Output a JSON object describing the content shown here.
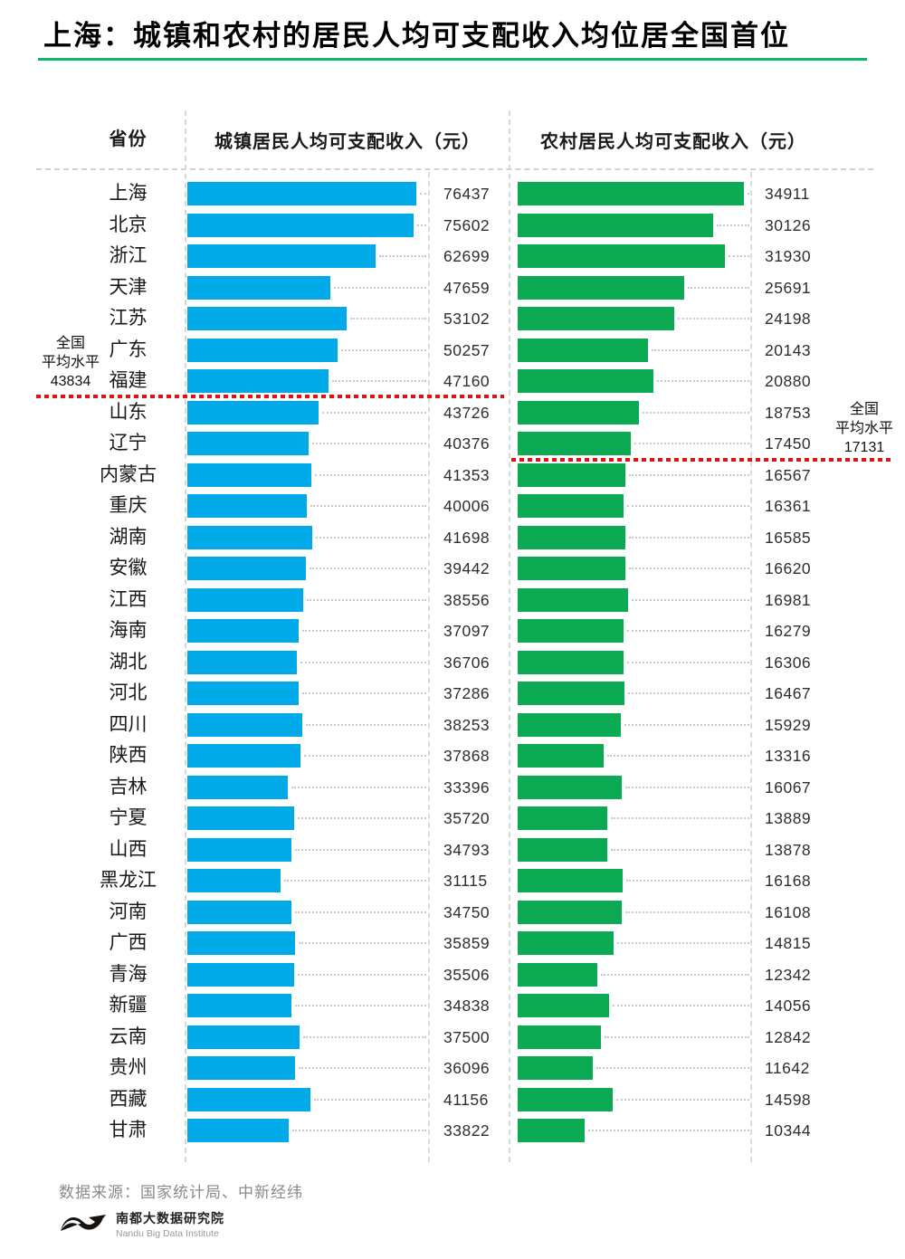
{
  "title": "上海：城镇和农村的居民人均可支配收入均位居全国首位",
  "colors": {
    "urban_bar": "#00a9e8",
    "rural_bar": "#0cab53",
    "title_rule": "#0db96e",
    "average_line": "#e01212"
  },
  "table": {
    "province_header": "省份",
    "urban_header": "城镇居民人均可支配收入（元）",
    "rural_header": "农村居民人均可支配收入（元）"
  },
  "chart_data": {
    "type": "bar",
    "orientation": "horizontal",
    "categories": [
      "上海",
      "北京",
      "浙江",
      "天津",
      "江苏",
      "广东",
      "福建",
      "山东",
      "辽宁",
      "内蒙古",
      "重庆",
      "湖南",
      "安徽",
      "江西",
      "海南",
      "湖北",
      "河北",
      "四川",
      "陕西",
      "吉林",
      "宁夏",
      "山西",
      "黑龙江",
      "河南",
      "广西",
      "青海",
      "新疆",
      "云南",
      "贵州",
      "西藏",
      "甘肃"
    ],
    "series": [
      {
        "name": "城镇居民人均可支配收入（元）",
        "color": "#00a9e8",
        "values": [
          76437,
          75602,
          62699,
          47659,
          53102,
          50257,
          47160,
          43726,
          40376,
          41353,
          40006,
          41698,
          39442,
          38556,
          37097,
          36706,
          37286,
          38253,
          37868,
          33396,
          35720,
          34793,
          31115,
          34750,
          35859,
          35506,
          34838,
          37500,
          36096,
          41156,
          33822
        ]
      },
      {
        "name": "农村居民人均可支配收入（元）",
        "color": "#0cab53",
        "values": [
          34911,
          30126,
          31930,
          25691,
          24198,
          20143,
          20880,
          18753,
          17450,
          16567,
          16361,
          16585,
          16620,
          16981,
          16279,
          16306,
          16467,
          15929,
          13316,
          16067,
          13889,
          13878,
          16168,
          16108,
          14815,
          12342,
          14056,
          12842,
          11642,
          14598,
          10344
        ]
      }
    ],
    "annotations": {
      "urban_average": {
        "line1": "全国",
        "line2": "平均水平",
        "value": "43834",
        "after_category": "福建"
      },
      "rural_average": {
        "line1": "全国",
        "line2": "平均水平",
        "value": "17131",
        "after_category": "辽宁"
      }
    },
    "layout_hints": {
      "bar_scale": "each column normalized to its own maximum",
      "grid": "dashed column dividers",
      "value_labels": "right of each bar via dotted leader lines"
    }
  },
  "footer": {
    "source": "数据来源：国家统计局、中新经纬",
    "logo_cn": "南都大数据研究院",
    "logo_en": "Nandu Big Data Institute"
  }
}
